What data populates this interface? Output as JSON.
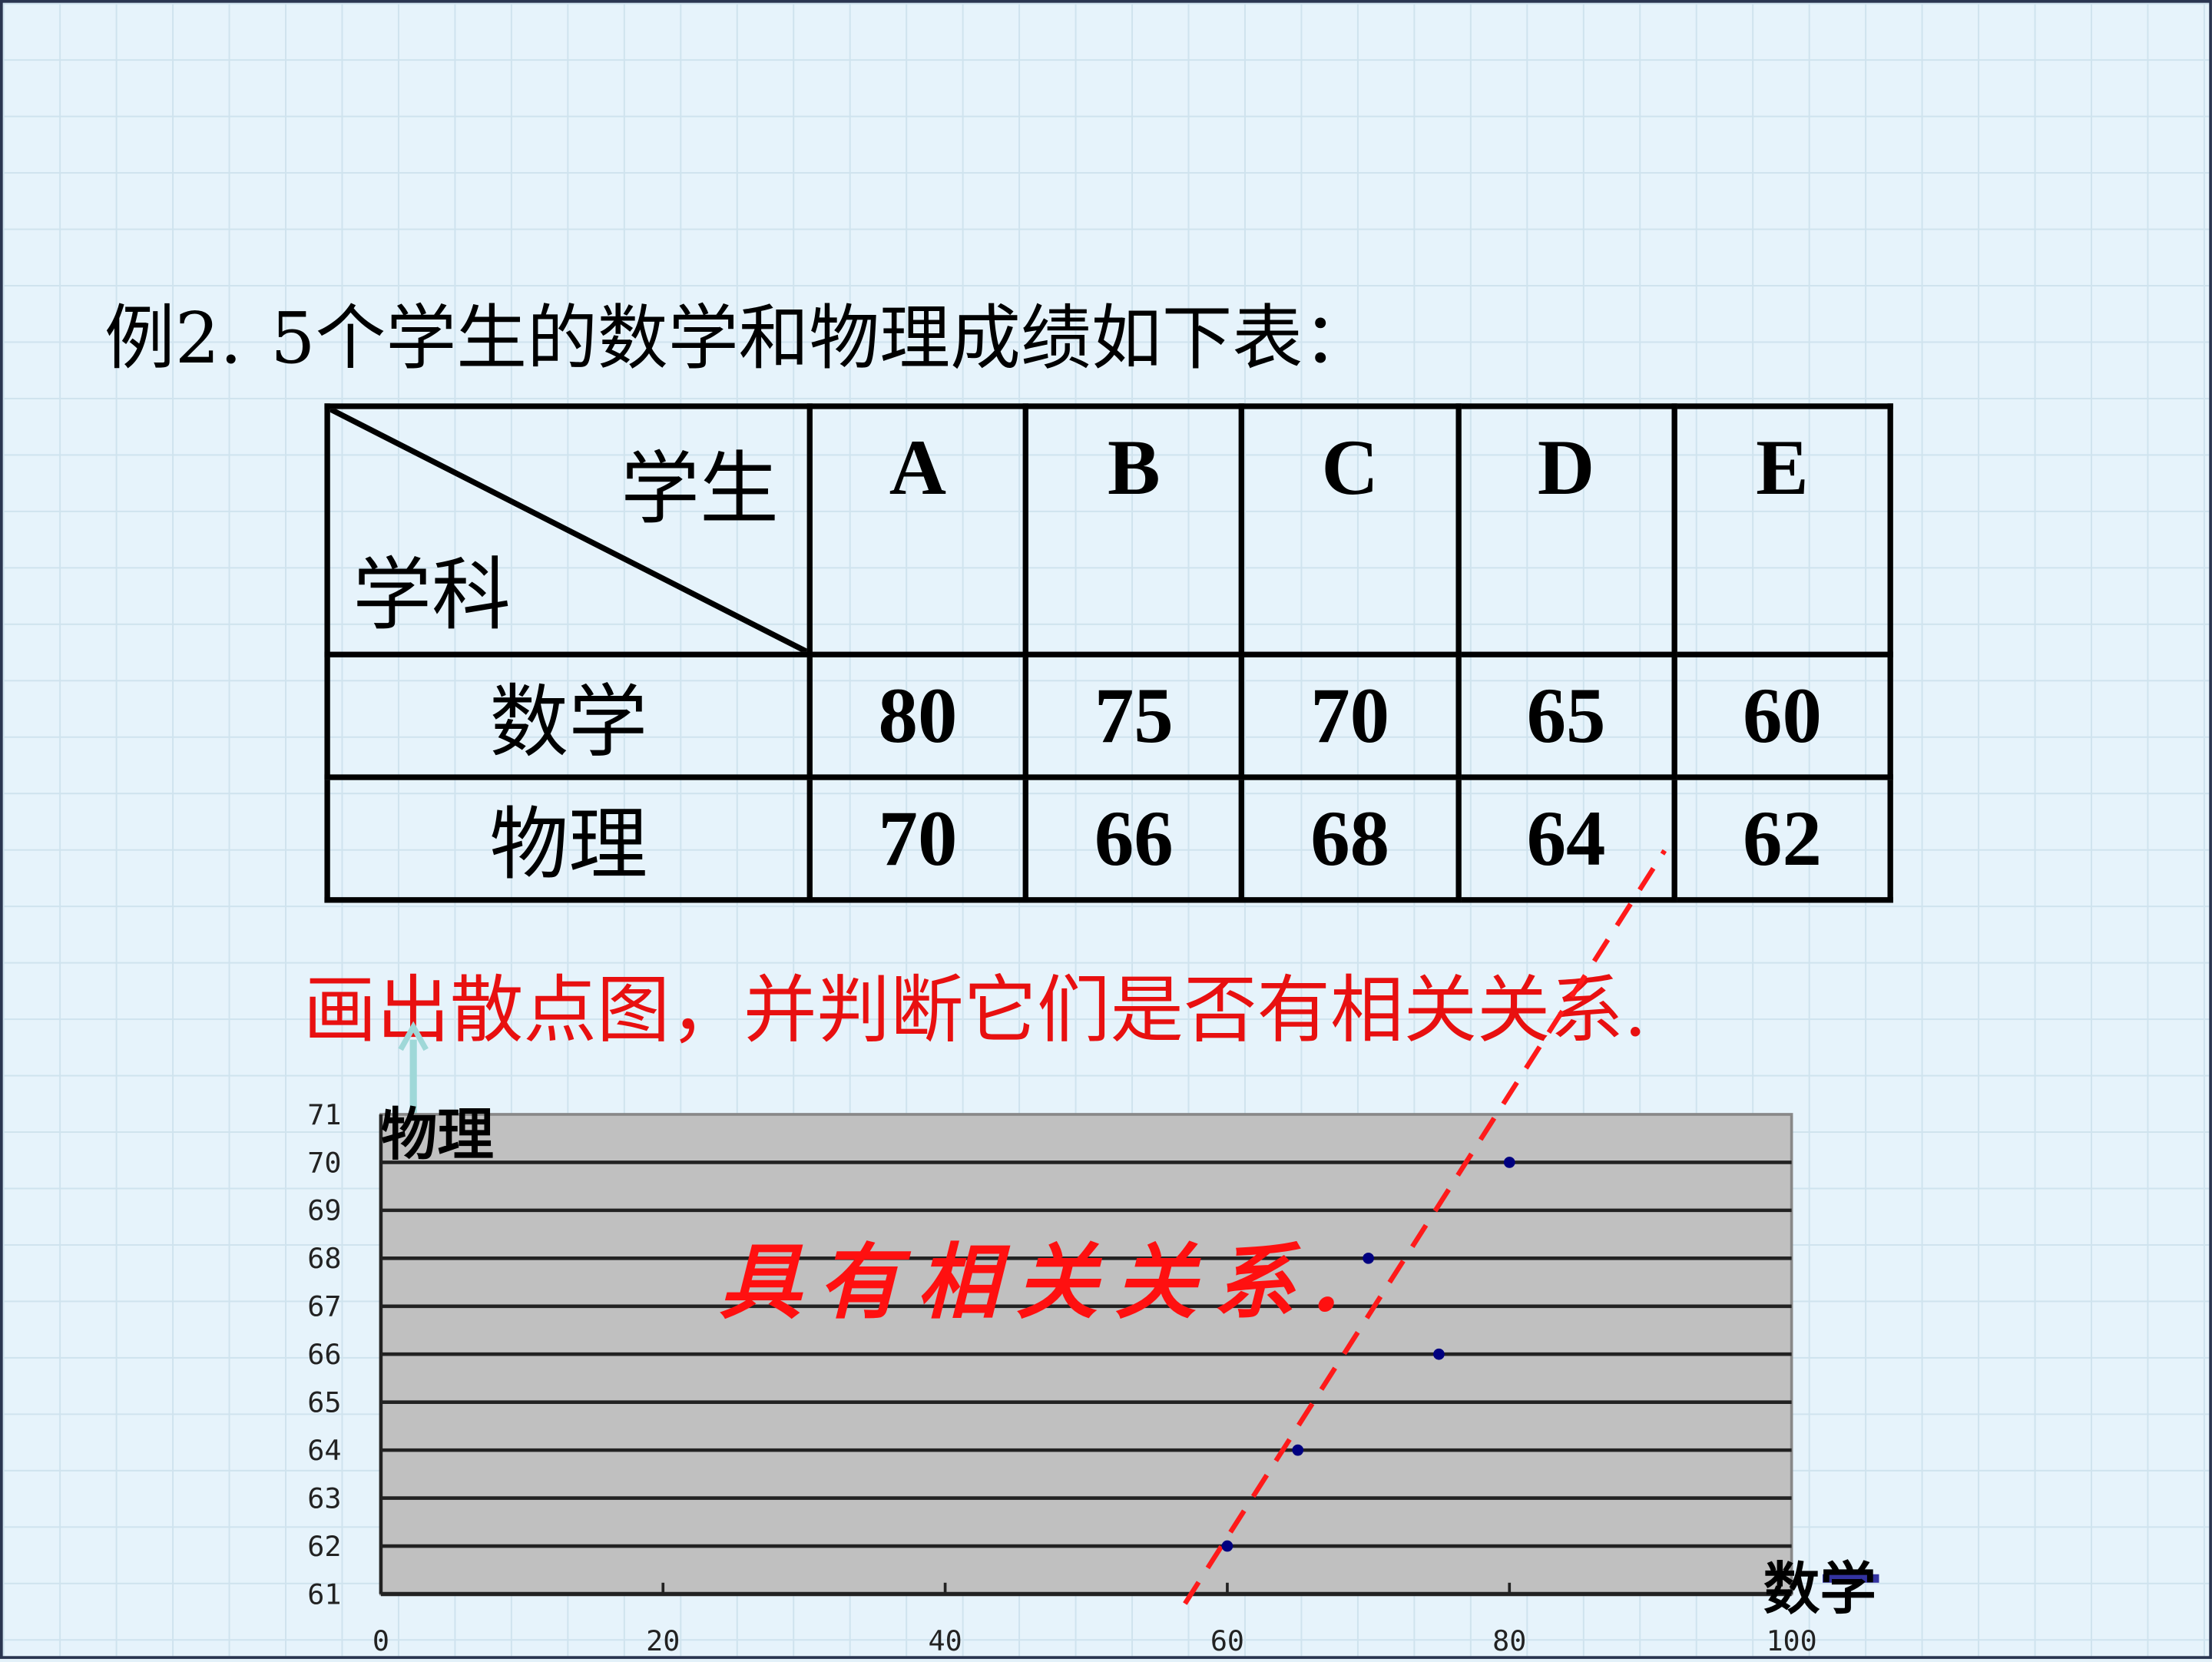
{
  "problem": {
    "label": "例2.",
    "text": "5个学生的数学和物理成绩如下表："
  },
  "table": {
    "corner_top": "学生",
    "corner_bottom": "学科",
    "students": [
      "A",
      "B",
      "C",
      "D",
      "E"
    ],
    "rows": [
      {
        "subject": "数学",
        "scores": [
          "80",
          "75",
          "70",
          "65",
          "60"
        ]
      },
      {
        "subject": "物理",
        "scores": [
          "70",
          "66",
          "68",
          "64",
          "62"
        ]
      }
    ]
  },
  "instruction": "画出散点图，并判断它们是否有相关关系.",
  "chart_data": {
    "type": "scatter",
    "xlabel": "数学",
    "ylabel": "物理",
    "xlim": [
      0,
      100
    ],
    "ylim": [
      61,
      71
    ],
    "xticks": [
      "0",
      "20",
      "40",
      "60",
      "80",
      "100"
    ],
    "yticks": [
      "61",
      "62",
      "63",
      "64",
      "65",
      "66",
      "67",
      "68",
      "69",
      "70",
      "71"
    ],
    "grid": "horizontal",
    "points": [
      {
        "x": 80,
        "y": 70
      },
      {
        "x": 75,
        "y": 66
      },
      {
        "x": 70,
        "y": 68
      },
      {
        "x": 65,
        "y": 64
      },
      {
        "x": 60,
        "y": 62
      }
    ],
    "trend_line": {
      "style": "dashed",
      "color": "#ff1a1a",
      "from": {
        "x": 57,
        "y": 60.8
      },
      "to": {
        "x": 91,
        "y": 76.5
      }
    },
    "annotation": "具有相关关系.",
    "colors": {
      "plot_bg": "#c0c0c0",
      "points": "#000080",
      "annotation": "#ff1010"
    }
  }
}
